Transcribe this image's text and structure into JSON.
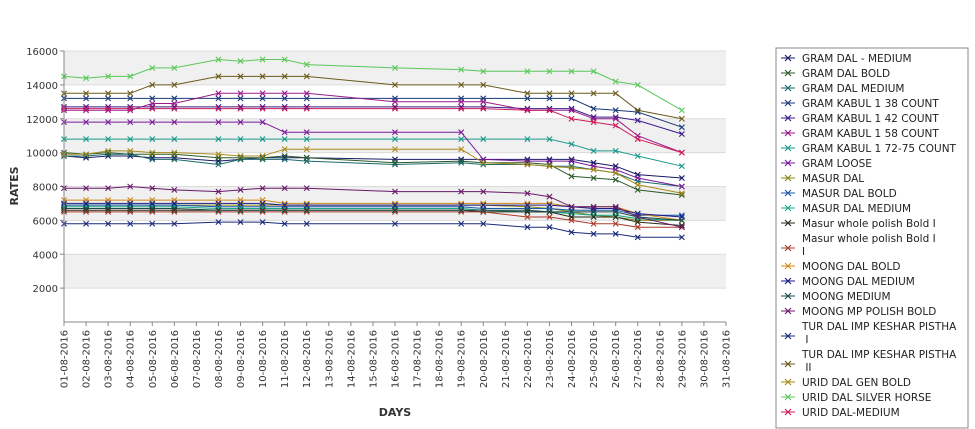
{
  "chart_data": {
    "type": "line",
    "title": "",
    "xlabel": "DAYS",
    "ylabel": "RATES",
    "ylim": [
      0,
      16000
    ],
    "yticks": [
      2000,
      4000,
      6000,
      8000,
      10000,
      12000,
      14000,
      16000
    ],
    "grid": "horizontal alternating bands",
    "legend_position": "right",
    "categories": [
      "01-08-2016",
      "02-08-2016",
      "03-08-2016",
      "04-08-2016",
      "05-08-2016",
      "06-08-2016",
      "07-08-2016",
      "08-08-2016",
      "09-08-2016",
      "10-08-2016",
      "11-08-2016",
      "12-08-2016",
      "13-08-2016",
      "14-08-2016",
      "15-08-2016",
      "16-08-2016",
      "17-08-2016",
      "18-08-2016",
      "19-08-2016",
      "20-08-2016",
      "21-08-2016",
      "22-08-2016",
      "23-08-2016",
      "24-08-2016",
      "25-08-2016",
      "26-08-2016",
      "27-08-2016",
      "28-08-2016",
      "29-08-2016",
      "30-08-2016",
      "31-08-2016"
    ],
    "series": [
      {
        "name": "GRAM DAL - MEDIUM",
        "color": "#1a1a66",
        "values": [
          9800,
          9700,
          9800,
          9800,
          9700,
          9700,
          null,
          9500,
          9600,
          9700,
          9700,
          9700,
          null,
          null,
          null,
          9600,
          null,
          null,
          9600,
          9600,
          null,
          9600,
          9600,
          9600,
          9400,
          9200,
          8700,
          null,
          8500,
          null,
          null
        ]
      },
      {
        "name": "GRAM DAL BOLD",
        "color": "#2a5a2a",
        "values": [
          10000,
          9900,
          10000,
          9900,
          9900,
          9900,
          null,
          9700,
          9700,
          9700,
          9800,
          9700,
          null,
          null,
          null,
          9400,
          null,
          null,
          9500,
          9400,
          null,
          9400,
          9300,
          8600,
          8500,
          8400,
          7800,
          null,
          7500,
          null,
          null
        ]
      },
      {
        "name": "GRAM DAL MEDIUM",
        "color": "#1a6a6a",
        "values": [
          9800,
          9800,
          9900,
          9900,
          9600,
          9600,
          null,
          9300,
          9600,
          9600,
          9600,
          9500,
          null,
          null,
          null,
          9300,
          null,
          null,
          9400,
          9300,
          null,
          9300,
          9200,
          9200,
          9000,
          8800,
          8300,
          null,
          8000,
          null,
          null
        ]
      },
      {
        "name": "GRAM KABUL 1 38 COUNT",
        "color": "#1a3a7a",
        "values": [
          13200,
          13200,
          13200,
          13200,
          13200,
          13200,
          null,
          13200,
          13200,
          13200,
          13200,
          13200,
          null,
          null,
          null,
          13200,
          null,
          null,
          13200,
          13200,
          null,
          13200,
          13200,
          13200,
          12600,
          12500,
          12400,
          null,
          11500,
          null,
          null
        ]
      },
      {
        "name": "GRAM KABUL 1 42 COUNT",
        "color": "#3a1a8a",
        "values": [
          12700,
          12700,
          12700,
          12700,
          12700,
          12700,
          null,
          12700,
          12700,
          12700,
          12700,
          12700,
          null,
          null,
          null,
          12700,
          null,
          null,
          12700,
          12700,
          null,
          12600,
          12600,
          12600,
          12100,
          12100,
          11900,
          null,
          11100,
          null,
          null
        ]
      },
      {
        "name": "GRAM KABUL 1 58 COUNT",
        "color": "#9a1a8a",
        "values": [
          12500,
          12500,
          12500,
          12500,
          12900,
          12900,
          null,
          13500,
          13500,
          13500,
          13500,
          13500,
          null,
          null,
          null,
          13000,
          null,
          null,
          13000,
          13000,
          null,
          12500,
          12500,
          12500,
          12000,
          12000,
          11000,
          null,
          10000,
          null,
          null
        ]
      },
      {
        "name": "GRAM KABUL 1 72-75 COUNT",
        "color": "#1a9a8a",
        "values": [
          10800,
          10800,
          10800,
          10800,
          10800,
          10800,
          null,
          10800,
          10800,
          10800,
          10800,
          10800,
          null,
          null,
          null,
          10800,
          null,
          null,
          10800,
          10800,
          null,
          10800,
          10800,
          10500,
          10100,
          10100,
          9800,
          null,
          9200,
          null,
          null
        ]
      },
      {
        "name": "GRAM LOOSE",
        "color": "#7a1a9a",
        "values": [
          11800,
          11800,
          11800,
          11800,
          11800,
          11800,
          null,
          11800,
          11800,
          11800,
          11200,
          11200,
          null,
          null,
          null,
          11200,
          null,
          null,
          11200,
          9600,
          null,
          9500,
          9500,
          9500,
          9200,
          9000,
          8500,
          null,
          8000,
          null,
          null
        ]
      },
      {
        "name": "MASUR DAL",
        "color": "#8a8a1a",
        "values": [
          6900,
          6900,
          6900,
          6900,
          6900,
          6900,
          null,
          6900,
          6900,
          6900,
          6900,
          6900,
          null,
          null,
          null,
          6900,
          null,
          null,
          6900,
          6900,
          null,
          6800,
          6700,
          6500,
          6300,
          6200,
          6000,
          null,
          6000,
          null,
          null
        ]
      },
      {
        "name": "MASUR DAL BOLD",
        "color": "#1a5aaa",
        "values": [
          6900,
          6900,
          6900,
          6900,
          6900,
          6900,
          null,
          6800,
          6800,
          6800,
          6800,
          6800,
          null,
          null,
          null,
          6800,
          null,
          null,
          6800,
          6700,
          null,
          6700,
          6700,
          6600,
          6600,
          6600,
          6300,
          null,
          6300,
          null,
          null
        ]
      },
      {
        "name": "MASUR DAL MEDIUM",
        "color": "#1aaa8a",
        "values": [
          6800,
          6800,
          6800,
          6800,
          6800,
          6800,
          null,
          6700,
          6700,
          6700,
          6700,
          6700,
          null,
          null,
          null,
          6700,
          null,
          null,
          6700,
          6600,
          null,
          6500,
          6500,
          6400,
          6300,
          6300,
          6100,
          null,
          6000,
          null,
          null
        ]
      },
      {
        "name": "Masur whole polish Bold I",
        "color": "#2a2a1a",
        "values": [
          6600,
          6600,
          6600,
          6600,
          6600,
          6600,
          null,
          6600,
          6600,
          6600,
          6600,
          6600,
          null,
          null,
          null,
          6600,
          null,
          null,
          6600,
          6500,
          null,
          6500,
          6500,
          6200,
          6200,
          6200,
          5900,
          null,
          5700,
          null,
          null
        ]
      },
      {
        "name": "Masur whole polish Bold I I",
        "color": "#aa3a2a",
        "values": [
          6500,
          6500,
          6500,
          6500,
          6500,
          6500,
          null,
          6500,
          6500,
          6500,
          6500,
          6500,
          null,
          null,
          null,
          6500,
          null,
          null,
          6500,
          6500,
          null,
          6200,
          6200,
          6000,
          5800,
          5800,
          5600,
          null,
          5600,
          null,
          null
        ]
      },
      {
        "name": "MOONG DAL BOLD",
        "color": "#d08a1a",
        "values": [
          7200,
          7200,
          7200,
          7200,
          7200,
          7200,
          null,
          7200,
          7200,
          7200,
          7000,
          7000,
          null,
          null,
          null,
          7000,
          null,
          null,
          7000,
          7000,
          null,
          7000,
          7000,
          6800,
          6800,
          6800,
          6400,
          null,
          6000,
          null,
          null
        ]
      },
      {
        "name": "MOONG DAL MEDIUM",
        "color": "#1a1a8a",
        "values": [
          7000,
          7000,
          7000,
          7000,
          7000,
          7000,
          null,
          7000,
          7000,
          7000,
          6900,
          6900,
          null,
          null,
          null,
          6900,
          null,
          null,
          6900,
          6900,
          null,
          6900,
          6900,
          6800,
          6700,
          6700,
          6400,
          null,
          6200,
          null,
          null
        ]
      },
      {
        "name": "MOONG MEDIUM",
        "color": "#1a4a4a",
        "values": [
          6700,
          6700,
          6700,
          6700,
          6700,
          6700,
          null,
          6600,
          6600,
          6600,
          6600,
          6600,
          null,
          null,
          null,
          6600,
          null,
          null,
          6600,
          6600,
          null,
          6600,
          6500,
          6500,
          6500,
          6500,
          6200,
          null,
          6000,
          null,
          null
        ]
      },
      {
        "name": "MOONG MP POLISH BOLD",
        "color": "#6a1a6a",
        "values": [
          7900,
          7900,
          7900,
          8000,
          7900,
          7800,
          null,
          7700,
          7800,
          7900,
          7900,
          7900,
          null,
          null,
          null,
          7700,
          null,
          null,
          7700,
          7700,
          null,
          7600,
          7400,
          6800,
          6800,
          6800,
          6200,
          null,
          5600,
          null,
          null
        ]
      },
      {
        "name": "TUR DAL IMP KESHAR PISTHA I",
        "color": "#1a2a7a",
        "values": [
          5800,
          5800,
          5800,
          5800,
          5800,
          5800,
          null,
          5900,
          5900,
          5900,
          5800,
          5800,
          null,
          null,
          null,
          5800,
          null,
          null,
          5800,
          5800,
          null,
          5600,
          5600,
          5300,
          5200,
          5200,
          5000,
          null,
          5000,
          null,
          null
        ]
      },
      {
        "name": "TUR DAL IMP KESHAR PISTHA II",
        "color": "#6a5a1a",
        "values": [
          13500,
          13500,
          13500,
          13500,
          14000,
          14000,
          null,
          14500,
          14500,
          14500,
          14500,
          14500,
          null,
          null,
          null,
          14000,
          null,
          null,
          14000,
          14000,
          null,
          13500,
          13500,
          13500,
          13500,
          13500,
          12500,
          null,
          12000,
          null,
          null
        ]
      },
      {
        "name": "URID DAL GEN BOLD",
        "color": "#aa8a1a",
        "values": [
          9900,
          9900,
          10100,
          10100,
          10000,
          10000,
          null,
          9900,
          9800,
          9800,
          10200,
          10200,
          null,
          null,
          null,
          10200,
          null,
          null,
          10200,
          9400,
          null,
          9300,
          9200,
          9100,
          9000,
          8800,
          8100,
          null,
          7600,
          null,
          null
        ]
      },
      {
        "name": "URID DAL SILVER HORSE",
        "color": "#5ac85a",
        "values": [
          14500,
          14400,
          14500,
          14500,
          15000,
          15000,
          null,
          15500,
          15400,
          15500,
          15500,
          15200,
          null,
          null,
          null,
          15000,
          null,
          null,
          14900,
          14800,
          null,
          14800,
          14800,
          14800,
          14800,
          14200,
          14000,
          null,
          12500,
          null,
          null
        ]
      },
      {
        "name": "URID DAL-MEDIUM",
        "color": "#d01a5a",
        "values": [
          12600,
          12600,
          12600,
          12600,
          12600,
          12600,
          null,
          12600,
          12600,
          12600,
          12600,
          12600,
          null,
          null,
          null,
          12600,
          null,
          null,
          12600,
          12600,
          null,
          12500,
          12500,
          12000,
          11800,
          11600,
          10800,
          null,
          10000,
          null,
          null
        ]
      }
    ]
  }
}
